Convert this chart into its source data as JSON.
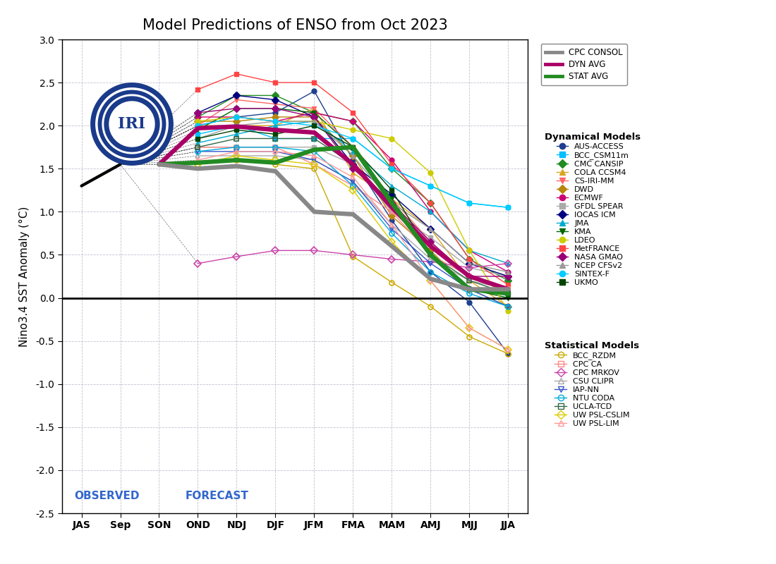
{
  "title": "Model Predictions of ENSO from Oct 2023",
  "ylabel": "Nino3.4 SST Anomaly (°C)",
  "xticks": [
    "JAS",
    "Sep",
    "SON",
    "OND",
    "NDJ",
    "DJF",
    "JFM",
    "FMA",
    "MAM",
    "AMJ",
    "MJJ",
    "JJA"
  ],
  "ylim": [
    -2.5,
    3.0
  ],
  "observed_label": "OBSERVED",
  "forecast_label": "FORECAST",
  "dyn_avg": [
    1.55,
    1.55,
    1.55,
    1.97,
    1.99,
    1.95,
    1.92,
    1.55,
    1.05,
    0.6,
    0.25,
    0.1
  ],
  "stat_avg": [
    1.55,
    1.55,
    1.55,
    1.57,
    1.6,
    1.57,
    1.72,
    1.75,
    1.1,
    0.5,
    0.1,
    0.05
  ],
  "cpc_consol": [
    1.55,
    1.55,
    1.55,
    1.5,
    1.53,
    1.47,
    1.0,
    0.97,
    0.6,
    0.22,
    0.1,
    0.1
  ],
  "obs_line": [
    [
      0,
      1.3
    ],
    [
      1,
      1.55
    ]
  ],
  "iri_blue": "#1a3a8a",
  "obs_color": "#3366cc",
  "dynamical_models": {
    "AUS-ACCESS": {
      "color": "#1f3f8f",
      "marker": "o",
      "data": [
        1.55,
        1.55,
        1.55,
        2.0,
        2.1,
        2.15,
        2.4,
        1.6,
        0.9,
        0.3,
        -0.05,
        -0.65
      ]
    },
    "BCC_CSM11m": {
      "color": "#00bfff",
      "marker": "s",
      "data": [
        1.55,
        1.55,
        1.55,
        1.9,
        2.0,
        1.85,
        1.85,
        1.85,
        1.5,
        1.3,
        1.1,
        1.05
      ]
    },
    "CMC CANSIP": {
      "color": "#228b22",
      "marker": "D",
      "data": [
        1.55,
        1.55,
        1.55,
        2.1,
        2.35,
        2.35,
        2.15,
        2.05,
        1.5,
        1.1,
        0.45,
        0.2
      ]
    },
    "COLA CCSM4": {
      "color": "#daa520",
      "marker": "^",
      "data": [
        1.55,
        1.55,
        1.55,
        2.0,
        2.0,
        2.0,
        2.2,
        1.45,
        1.15,
        0.8,
        0.2,
        -0.1
      ]
    },
    "CS-IRI-MM": {
      "color": "#ff6666",
      "marker": "v",
      "data": [
        1.55,
        1.55,
        1.55,
        2.0,
        2.3,
        2.25,
        2.2,
        1.75,
        1.15,
        0.65,
        0.25,
        0.1
      ]
    },
    "DWD": {
      "color": "#b8860b",
      "marker": "D",
      "data": [
        1.55,
        1.55,
        1.55,
        2.05,
        2.05,
        2.1,
        2.1,
        1.65,
        0.95,
        0.55,
        0.1,
        -0.1
      ]
    },
    "ECMWF": {
      "color": "#cc0077",
      "marker": "o",
      "data": [
        1.55,
        1.55,
        1.55,
        2.1,
        2.1,
        2.05,
        2.15,
        2.05,
        1.6,
        1.0,
        0.55,
        0.3
      ]
    },
    "GFDL SPEAR": {
      "color": "#aaaaaa",
      "marker": "s",
      "data": [
        1.55,
        1.55,
        1.55,
        1.75,
        1.75,
        1.75,
        1.75,
        1.55,
        1.0,
        0.7,
        0.35,
        0.25
      ]
    },
    "IOCAS ICM": {
      "color": "#000080",
      "marker": "D",
      "data": [
        1.55,
        1.55,
        1.55,
        2.15,
        2.35,
        2.3,
        2.1,
        1.55,
        1.2,
        0.8,
        0.4,
        0.25
      ]
    },
    "JMA": {
      "color": "#00aacc",
      "marker": "^",
      "data": [
        1.55,
        1.55,
        1.55,
        1.8,
        1.9,
        2.0,
        2.05,
        1.7,
        1.3,
        1.0,
        0.55,
        0.4
      ]
    },
    "KMA": {
      "color": "#006600",
      "marker": "v",
      "data": [
        1.55,
        1.55,
        1.55,
        1.95,
        2.2,
        2.2,
        2.15,
        1.75,
        1.15,
        0.5,
        0.1,
        0.0
      ]
    },
    "LDEO": {
      "color": "#cccc00",
      "marker": "o",
      "data": [
        1.55,
        1.55,
        1.55,
        2.05,
        2.1,
        2.05,
        2.05,
        1.95,
        1.85,
        1.45,
        0.55,
        -0.15
      ]
    },
    "MetFRANCE": {
      "color": "#ff4444",
      "marker": "s",
      "data": [
        1.55,
        1.55,
        1.55,
        2.42,
        2.6,
        2.5,
        2.5,
        2.15,
        1.55,
        1.1,
        0.45,
        0.15
      ]
    },
    "NASA GMAO": {
      "color": "#990077",
      "marker": "D",
      "data": [
        1.55,
        1.55,
        1.55,
        2.15,
        2.2,
        2.2,
        2.1,
        1.5,
        1.1,
        0.65,
        0.25,
        0.25
      ]
    },
    "NCEP CFSv2": {
      "color": "#999999",
      "marker": "^",
      "data": [
        1.55,
        1.55,
        1.55,
        1.85,
        2.0,
        2.05,
        2.05,
        1.65,
        1.1,
        0.8,
        0.4,
        0.3
      ]
    },
    "SINTEX-F": {
      "color": "#00ccff",
      "marker": "o",
      "data": [
        1.55,
        1.55,
        1.55,
        2.0,
        2.1,
        2.05,
        2.0,
        1.85,
        1.5,
        1.3,
        1.1,
        1.05
      ]
    },
    "UKMO": {
      "color": "#004400",
      "marker": "s",
      "data": [
        1.55,
        1.55,
        1.55,
        1.85,
        1.95,
        1.9,
        2.0,
        1.75,
        1.25,
        0.5,
        0.1,
        0.05
      ]
    }
  },
  "statistical_models": {
    "BCC_RZDM": {
      "color": "#ccaa00",
      "marker": "o",
      "data": [
        1.55,
        1.55,
        1.55,
        1.55,
        1.6,
        1.55,
        1.5,
        0.48,
        0.18,
        -0.1,
        -0.45,
        -0.65
      ]
    },
    "CPC CA": {
      "color": "#ff8888",
      "marker": "s",
      "data": [
        1.55,
        1.55,
        1.55,
        1.75,
        1.75,
        1.75,
        1.55,
        1.3,
        1.0,
        0.5,
        0.25,
        0.1
      ]
    },
    "CPC MRKOV": {
      "color": "#cc44aa",
      "marker": "D",
      "data": [
        1.55,
        1.55,
        1.55,
        0.4,
        0.48,
        0.55,
        0.55,
        0.5,
        0.45,
        0.42,
        0.35,
        0.4
      ]
    },
    "CSU CLIPR": {
      "color": "#aaaaaa",
      "marker": "^",
      "data": [
        1.55,
        1.55,
        1.55,
        1.65,
        1.65,
        1.65,
        1.6,
        1.35,
        0.85,
        0.45,
        0.2,
        0.1
      ]
    },
    "IAP-NN": {
      "color": "#3355cc",
      "marker": "v",
      "data": [
        1.55,
        1.55,
        1.55,
        1.7,
        1.7,
        1.7,
        1.6,
        1.35,
        0.8,
        0.4,
        0.1,
        -0.1
      ]
    },
    "NTU CODA": {
      "color": "#00aadd",
      "marker": "o",
      "data": [
        1.55,
        1.55,
        1.55,
        1.7,
        1.75,
        1.75,
        1.7,
        1.3,
        0.75,
        0.3,
        0.05,
        -0.1
      ]
    },
    "UCLA-TCD": {
      "color": "#336644",
      "marker": "s",
      "data": [
        1.55,
        1.55,
        1.55,
        1.75,
        1.85,
        1.85,
        1.85,
        1.55,
        1.1,
        0.5,
        0.2,
        0.05
      ]
    },
    "UW PSL-CSLIM": {
      "color": "#ddcc00",
      "marker": "D",
      "data": [
        1.55,
        1.55,
        1.55,
        1.55,
        1.65,
        1.6,
        1.55,
        1.25,
        0.65,
        0.2,
        -0.35,
        -0.6
      ]
    },
    "UW PSL-LIM": {
      "color": "#ff9999",
      "marker": "^",
      "data": [
        1.55,
        1.55,
        1.55,
        1.6,
        1.7,
        1.7,
        1.65,
        1.4,
        0.85,
        0.2,
        -0.35,
        -0.6
      ]
    }
  }
}
